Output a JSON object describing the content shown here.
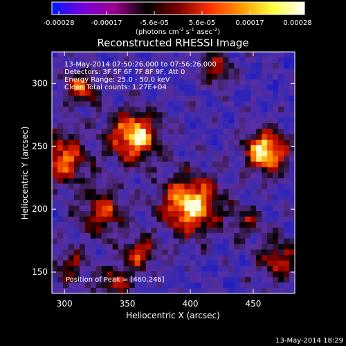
{
  "chart_data": {
    "type": "heatmap",
    "title": "Reconstructed RHESSI Image",
    "xlabel": "Heliocentric X (arcsec)",
    "ylabel": "Heliocentric Y (arcsec)",
    "xlim": [
      290,
      483
    ],
    "ylim": [
      133,
      325
    ],
    "xticks": [
      "300",
      "350",
      "400",
      "450"
    ],
    "yticks": [
      "150",
      "200",
      "250",
      "300"
    ],
    "colorbar": {
      "ticks": [
        "-0.00028",
        "-0.00017",
        "-5.6e-05",
        "5.6e-05",
        "0.00017",
        "0.00028"
      ],
      "label": "(photons cm",
      "label_sup1": "-2",
      "label_mid": " s",
      "label_sup2": "-1",
      "label_tail": " asec",
      "label_sup3": "-2",
      "label_end": ")",
      "colors": [
        "#0018ff",
        "#7a00d8",
        "#9a008a",
        "#000000",
        "#7a0000",
        "#ff3000",
        "#ff9a00",
        "#ffff40",
        "#ffffff"
      ]
    },
    "annotations": [
      "13-May-2014 07:50:26.000 to 07:56:26.000",
      "Detectors: 3F 5F 6F 7F 8F 9F, Att 0",
      "Energy Range: 25.0 - 50.0 keV",
      "Clean     Total counts: 1.27E+04"
    ],
    "peak_label": "Position of Peak = [460,246]",
    "peak": [
      460,
      246
    ],
    "blobs": [
      {
        "x": 400,
        "y": 203,
        "amp": 1.0,
        "sigma": 16
      },
      {
        "x": 460,
        "y": 246,
        "amp": 1.0,
        "sigma": 12
      },
      {
        "x": 355,
        "y": 258,
        "amp": 0.95,
        "sigma": 14
      },
      {
        "x": 298,
        "y": 240,
        "amp": 0.75,
        "sigma": 14
      },
      {
        "x": 330,
        "y": 198,
        "amp": 0.6,
        "sigma": 13
      },
      {
        "x": 313,
        "y": 296,
        "amp": 0.6,
        "sigma": 10
      },
      {
        "x": 420,
        "y": 312,
        "amp": 0.55,
        "sigma": 9
      },
      {
        "x": 360,
        "y": 165,
        "amp": 0.55,
        "sigma": 10
      },
      {
        "x": 340,
        "y": 142,
        "amp": 0.5,
        "sigma": 10
      },
      {
        "x": 470,
        "y": 160,
        "amp": 0.55,
        "sigma": 12
      },
      {
        "x": 305,
        "y": 155,
        "amp": 0.45,
        "sigma": 10
      },
      {
        "x": 445,
        "y": 190,
        "amp": 0.4,
        "sigma": 9
      }
    ]
  },
  "footer": {
    "timestamp": "13-May-2014 18:29"
  }
}
